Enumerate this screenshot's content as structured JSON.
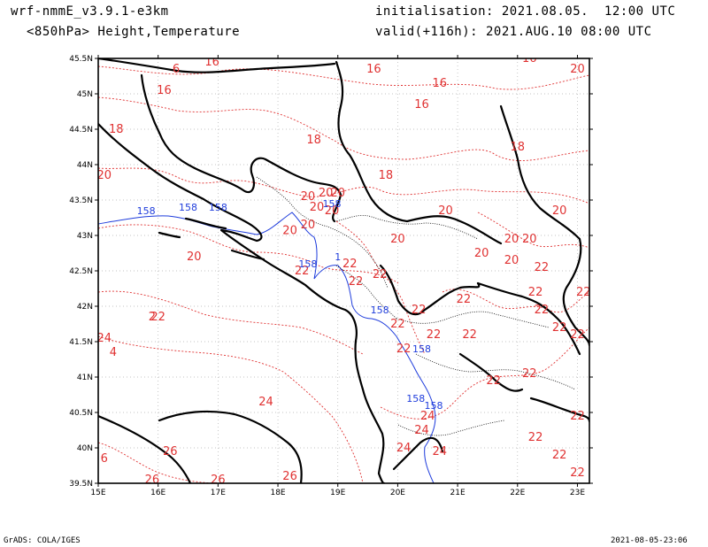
{
  "header": {
    "model": "wrf-nmmE_v3.9.1-e3km",
    "fields": "<850hPa> Height,Temperature",
    "init": "initialisation: 2021.08.05.  12:00 UTC",
    "valid": "valid(+116h): 2021.AUG.10 08:00 UTC"
  },
  "footer": {
    "credit": "GrADS: COLA/IGES",
    "timestamp": "2021-08-05-23:06"
  },
  "axes": {
    "lon_labels": [
      "15E",
      "16E",
      "17E",
      "18E",
      "19E",
      "20E",
      "21E",
      "22E",
      "23E"
    ],
    "lat_labels": [
      "45.5N",
      "45N",
      "44.5N",
      "44N",
      "43.5N",
      "43N",
      "42.5N",
      "42N",
      "41.5N",
      "41N",
      "40.5N",
      "40N",
      "39.5N"
    ]
  },
  "colors": {
    "temperature": "#e03232",
    "height": "#1e3cdc",
    "coast": "#000000"
  },
  "chart_data": {
    "type": "map",
    "extent": {
      "lon": [
        15.0,
        23.2
      ],
      "lat": [
        39.5,
        45.5
      ]
    },
    "temperature_labels": [
      {
        "text": "16",
        "lon": 16.1,
        "lat": 45.0
      },
      {
        "text": "6",
        "lon": 16.3,
        "lat": 45.3
      },
      {
        "text": "16",
        "lon": 16.9,
        "lat": 45.4
      },
      {
        "text": "16",
        "lon": 19.6,
        "lat": 45.3
      },
      {
        "text": "16",
        "lon": 20.7,
        "lat": 45.1
      },
      {
        "text": "16",
        "lon": 20.4,
        "lat": 44.8
      },
      {
        "text": "16",
        "lon": 22.2,
        "lat": 45.45
      },
      {
        "text": "20",
        "lon": 23.0,
        "lat": 45.3
      },
      {
        "text": "18",
        "lon": 15.3,
        "lat": 44.45
      },
      {
        "text": "18",
        "lon": 18.6,
        "lat": 44.3
      },
      {
        "text": "18",
        "lon": 22.0,
        "lat": 44.2
      },
      {
        "text": "18",
        "lon": 19.8,
        "lat": 43.8
      },
      {
        "text": "20",
        "lon": 15.1,
        "lat": 43.8
      },
      {
        "text": "20",
        "lon": 18.5,
        "lat": 43.5
      },
      {
        "text": "20",
        "lon": 18.8,
        "lat": 43.55
      },
      {
        "text": "20",
        "lon": 19.0,
        "lat": 43.55
      },
      {
        "text": "20",
        "lon": 18.9,
        "lat": 43.3
      },
      {
        "text": "20",
        "lon": 18.65,
        "lat": 43.35
      },
      {
        "text": "20",
        "lon": 18.5,
        "lat": 43.1
      },
      {
        "text": "20",
        "lon": 18.2,
        "lat": 43.02
      },
      {
        "text": "20",
        "lon": 16.6,
        "lat": 42.65
      },
      {
        "text": "20",
        "lon": 20.8,
        "lat": 43.3
      },
      {
        "text": "20",
        "lon": 20.0,
        "lat": 42.9
      },
      {
        "text": "20",
        "lon": 21.4,
        "lat": 42.7
      },
      {
        "text": "20",
        "lon": 21.9,
        "lat": 42.9
      },
      {
        "text": "20",
        "lon": 22.2,
        "lat": 42.9
      },
      {
        "text": "20",
        "lon": 21.9,
        "lat": 42.6
      },
      {
        "text": "20",
        "lon": 22.7,
        "lat": 43.3
      },
      {
        "text": "22",
        "lon": 19.2,
        "lat": 42.55
      },
      {
        "text": "22",
        "lon": 19.7,
        "lat": 42.4
      },
      {
        "text": "22",
        "lon": 19.3,
        "lat": 42.3
      },
      {
        "text": "22",
        "lon": 18.4,
        "lat": 42.45
      },
      {
        "text": "22",
        "lon": 22.4,
        "lat": 42.5
      },
      {
        "text": "22",
        "lon": 22.3,
        "lat": 42.15
      },
      {
        "text": "22",
        "lon": 22.4,
        "lat": 41.9
      },
      {
        "text": "22",
        "lon": 23.1,
        "lat": 42.15
      },
      {
        "text": "22",
        "lon": 21.1,
        "lat": 42.05
      },
      {
        "text": "22",
        "lon": 20.35,
        "lat": 41.9
      },
      {
        "text": "22",
        "lon": 20.0,
        "lat": 41.7
      },
      {
        "text": "22",
        "lon": 20.6,
        "lat": 41.55
      },
      {
        "text": "22",
        "lon": 21.2,
        "lat": 41.55
      },
      {
        "text": "22",
        "lon": 22.7,
        "lat": 41.65
      },
      {
        "text": "22",
        "lon": 23.0,
        "lat": 41.55
      },
      {
        "text": "22",
        "lon": 20.1,
        "lat": 41.35
      },
      {
        "text": "22",
        "lon": 21.6,
        "lat": 40.9
      },
      {
        "text": "22",
        "lon": 22.2,
        "lat": 41.0
      },
      {
        "text": "22",
        "lon": 16.0,
        "lat": 41.8
      },
      {
        "text": "2",
        "lon": 15.9,
        "lat": 41.8
      },
      {
        "text": "24",
        "lon": 15.1,
        "lat": 41.5
      },
      {
        "text": "4",
        "lon": 15.25,
        "lat": 41.3
      },
      {
        "text": "24",
        "lon": 17.8,
        "lat": 40.6
      },
      {
        "text": "24",
        "lon": 20.5,
        "lat": 40.4
      },
      {
        "text": "24",
        "lon": 20.4,
        "lat": 40.2
      },
      {
        "text": "24",
        "lon": 20.1,
        "lat": 39.95
      },
      {
        "text": "24",
        "lon": 20.7,
        "lat": 39.9
      },
      {
        "text": "22",
        "lon": 23.0,
        "lat": 40.4
      },
      {
        "text": "22",
        "lon": 22.3,
        "lat": 40.1
      },
      {
        "text": "22",
        "lon": 22.7,
        "lat": 39.85
      },
      {
        "text": "22",
        "lon": 23.0,
        "lat": 39.6
      },
      {
        "text": "26",
        "lon": 16.2,
        "lat": 39.9
      },
      {
        "text": "6",
        "lon": 15.1,
        "lat": 39.8
      },
      {
        "text": "26",
        "lon": 15.9,
        "lat": 39.5
      },
      {
        "text": "26",
        "lon": 17.0,
        "lat": 39.5
      },
      {
        "text": "26",
        "lon": 18.2,
        "lat": 39.55
      }
    ],
    "height_labels": [
      {
        "text": "158",
        "lon": 15.8,
        "lat": 43.3
      },
      {
        "text": "158",
        "lon": 16.5,
        "lat": 43.35
      },
      {
        "text": "158",
        "lon": 17.0,
        "lat": 43.35
      },
      {
        "text": "158",
        "lon": 18.9,
        "lat": 43.4
      },
      {
        "text": "158",
        "lon": 18.5,
        "lat": 42.55
      },
      {
        "text": "1",
        "lon": 19.0,
        "lat": 42.65
      },
      {
        "text": "158",
        "lon": 19.7,
        "lat": 41.9
      },
      {
        "text": "158",
        "lon": 20.4,
        "lat": 41.35
      },
      {
        "text": "158",
        "lon": 20.3,
        "lat": 40.65
      },
      {
        "text": "158",
        "lon": 20.6,
        "lat": 40.55
      }
    ]
  }
}
